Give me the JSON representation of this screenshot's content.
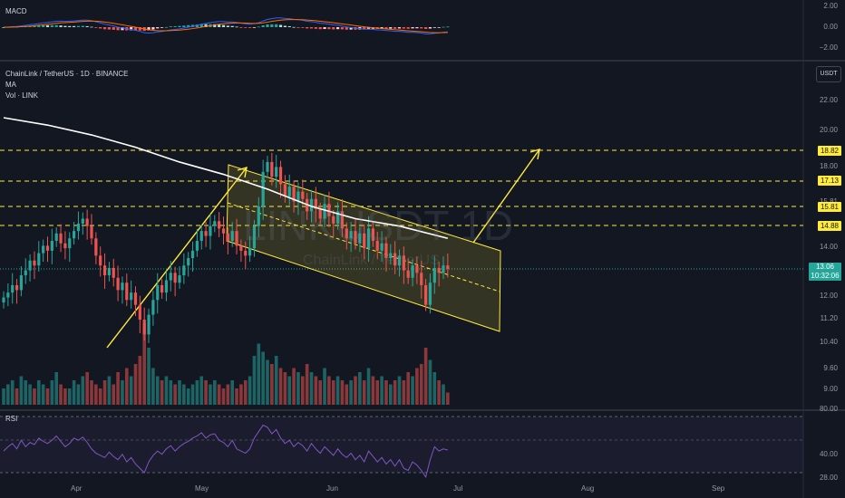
{
  "macd": {
    "label": "MACD",
    "scale": [
      "2.00",
      "0.00",
      "−2.00"
    ]
  },
  "main": {
    "symbol_title": "ChainLink / TetherUS · 1D · BINANCE",
    "indicators": [
      "MA",
      "Vol · LINK"
    ],
    "currency_badge": "USDT",
    "watermark_big": "LINKUSDT 1D",
    "watermark_small": "ChainLink / TetherUS",
    "price_scale": [
      "22.00",
      "20.00",
      "18.00",
      "15.81",
      "14.00",
      "12.00",
      "11.20",
      "10.40",
      "9.60",
      "9.00"
    ],
    "levels": [
      "18.82",
      "17.13",
      "15.81",
      "14.88"
    ],
    "current_price": "13.06",
    "countdown": "10:32:06"
  },
  "rsi": {
    "label": "RSI",
    "scale": [
      "80.00",
      "40.00",
      "28.00"
    ]
  },
  "time_axis": [
    "Apr",
    "May",
    "Jun",
    "Jul",
    "Aug",
    "Sep"
  ],
  "colors": {
    "background": "#131722",
    "bull": "#26a69a",
    "bear": "#ef5350",
    "level": "#ffeb3b",
    "ma": "#ffffff",
    "rsi": "#7e57c2"
  },
  "chart_data": {
    "type": "candlestick",
    "price_closes": [
      11.9,
      12.1,
      12.4,
      12.2,
      12.8,
      13.0,
      13.4,
      13.2,
      13.7,
      14.0,
      13.8,
      14.2,
      14.5,
      14.1,
      13.9,
      14.3,
      14.6,
      14.9,
      15.1,
      14.8,
      14.3,
      13.6,
      13.2,
      12.8,
      13.1,
      12.7,
      12.2,
      12.5,
      11.8,
      12.1,
      11.6,
      11.0,
      10.4,
      11.2,
      11.8,
      12.4,
      12.1,
      12.6,
      12.9,
      12.5,
      12.8,
      13.2,
      13.5,
      13.8,
      14.2,
      14.6,
      14.4,
      14.8,
      15.0,
      14.7,
      14.5,
      14.2,
      14.6,
      14.0,
      13.8,
      13.6,
      13.9,
      14.8,
      15.6,
      17.0,
      17.4,
      16.8,
      17.2,
      16.5,
      16.0,
      16.4,
      15.8,
      16.2,
      15.9,
      15.4,
      15.9,
      15.5,
      15.1,
      15.7,
      15.2,
      14.9,
      15.4,
      14.7,
      14.3,
      14.6,
      14.1,
      14.5,
      13.9,
      14.7,
      14.2,
      13.8,
      14.1,
      13.5,
      13.7,
      13.2,
      13.6,
      13.0,
      12.7,
      13.2,
      12.9,
      12.4,
      11.6,
      12.5,
      13.1,
      12.9,
      13.2,
      13.06
    ],
    "volume_levels": [
      0.2,
      0.25,
      0.3,
      0.2,
      0.35,
      0.3,
      0.25,
      0.2,
      0.3,
      0.25,
      0.2,
      0.3,
      0.4,
      0.25,
      0.2,
      0.2,
      0.3,
      0.25,
      0.35,
      0.4,
      0.3,
      0.25,
      0.2,
      0.3,
      0.35,
      0.25,
      0.4,
      0.3,
      0.45,
      0.35,
      0.5,
      0.6,
      1.0,
      0.7,
      0.45,
      0.35,
      0.3,
      0.35,
      0.3,
      0.25,
      0.3,
      0.25,
      0.2,
      0.25,
      0.3,
      0.35,
      0.3,
      0.25,
      0.3,
      0.25,
      0.2,
      0.25,
      0.3,
      0.2,
      0.25,
      0.3,
      0.35,
      0.6,
      0.75,
      0.65,
      0.55,
      0.5,
      0.6,
      0.45,
      0.4,
      0.35,
      0.45,
      0.4,
      0.35,
      0.5,
      0.4,
      0.35,
      0.3,
      0.45,
      0.35,
      0.3,
      0.35,
      0.3,
      0.25,
      0.3,
      0.35,
      0.4,
      0.3,
      0.45,
      0.35,
      0.3,
      0.35,
      0.3,
      0.25,
      0.3,
      0.35,
      0.3,
      0.4,
      0.35,
      0.45,
      0.5,
      0.7,
      0.55,
      0.4,
      0.3,
      0.25,
      0.15
    ],
    "ma_path": [
      [
        0,
        19.2
      ],
      [
        10,
        18.9
      ],
      [
        20,
        18.5
      ],
      [
        30,
        18.0
      ],
      [
        40,
        17.4
      ],
      [
        50,
        16.9
      ],
      [
        60,
        16.3
      ],
      [
        70,
        15.6
      ],
      [
        80,
        15.1
      ],
      [
        90,
        14.8
      ],
      [
        101,
        14.3
      ]
    ],
    "rsi_values": [
      48,
      52,
      55,
      50,
      58,
      52,
      56,
      54,
      60,
      57,
      55,
      58,
      62,
      57,
      52,
      55,
      60,
      58,
      61,
      56,
      50,
      46,
      44,
      42,
      47,
      43,
      40,
      45,
      38,
      42,
      36,
      32,
      28,
      38,
      44,
      48,
      45,
      50,
      53,
      48,
      52,
      55,
      57,
      60,
      62,
      65,
      60,
      63,
      64,
      58,
      56,
      52,
      58,
      50,
      48,
      46,
      50,
      60,
      66,
      72,
      70,
      64,
      68,
      60,
      55,
      58,
      52,
      56,
      53,
      48,
      55,
      50,
      46,
      52,
      48,
      44,
      50,
      45,
      42,
      46,
      40,
      44,
      38,
      48,
      43,
      38,
      42,
      36,
      40,
      34,
      40,
      32,
      30,
      38,
      35,
      30,
      24,
      40,
      52,
      48,
      50,
      49
    ]
  }
}
